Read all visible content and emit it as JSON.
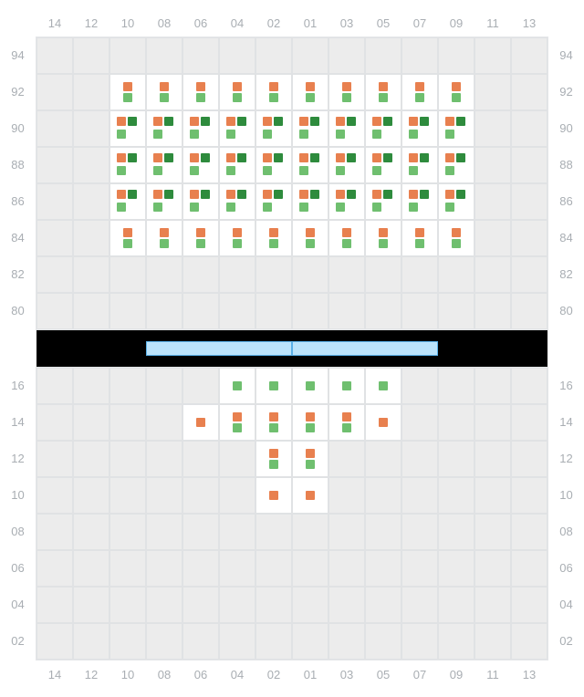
{
  "colors": {
    "orange": "#e8804f",
    "green": "#6fbf6f",
    "darkgreen": "#2e8b3d",
    "axis_text": "#a9aeb3",
    "grid_bg": "#ececec",
    "cell_border": "#e0e2e4",
    "occupied_bg": "#ffffff",
    "divider_bg": "#000000",
    "bar_bg": "#bbe3fb",
    "bar_border": "#5ab0e8"
  },
  "x_axis": [
    "14",
    "12",
    "10",
    "08",
    "06",
    "04",
    "02",
    "01",
    "03",
    "05",
    "07",
    "09",
    "11",
    "13"
  ],
  "top_panel": {
    "y_axis": [
      "94",
      "92",
      "90",
      "88",
      "86",
      "84",
      "82",
      "80"
    ],
    "cells": {
      "92": {
        "10": [
          "orange",
          "green"
        ],
        "08": [
          "orange",
          "green"
        ],
        "06": [
          "orange",
          "green"
        ],
        "04": [
          "orange",
          "green"
        ],
        "02": [
          "orange",
          "green"
        ],
        "01": [
          "orange",
          "green"
        ],
        "03": [
          "orange",
          "green"
        ],
        "05": [
          "orange",
          "green"
        ],
        "07": [
          "orange",
          "green"
        ],
        "09": [
          "orange",
          "green"
        ]
      },
      "90": {
        "10": [
          "orange",
          "darkgreen",
          "green"
        ],
        "08": [
          "orange",
          "darkgreen",
          "green"
        ],
        "06": [
          "orange",
          "darkgreen",
          "green"
        ],
        "04": [
          "orange",
          "darkgreen",
          "green"
        ],
        "02": [
          "orange",
          "darkgreen",
          "green"
        ],
        "01": [
          "orange",
          "darkgreen",
          "green"
        ],
        "03": [
          "orange",
          "darkgreen",
          "green"
        ],
        "05": [
          "orange",
          "darkgreen",
          "green"
        ],
        "07": [
          "orange",
          "darkgreen",
          "green"
        ],
        "09": [
          "orange",
          "darkgreen",
          "green"
        ]
      },
      "88": {
        "10": [
          "orange",
          "darkgreen",
          "green"
        ],
        "08": [
          "orange",
          "darkgreen",
          "green"
        ],
        "06": [
          "orange",
          "darkgreen",
          "green"
        ],
        "04": [
          "orange",
          "darkgreen",
          "green"
        ],
        "02": [
          "orange",
          "darkgreen",
          "green"
        ],
        "01": [
          "orange",
          "darkgreen",
          "green"
        ],
        "03": [
          "orange",
          "darkgreen",
          "green"
        ],
        "05": [
          "orange",
          "darkgreen",
          "green"
        ],
        "07": [
          "orange",
          "darkgreen",
          "green"
        ],
        "09": [
          "orange",
          "darkgreen",
          "green"
        ]
      },
      "86": {
        "10": [
          "orange",
          "darkgreen",
          "green"
        ],
        "08": [
          "orange",
          "darkgreen",
          "green"
        ],
        "06": [
          "orange",
          "darkgreen",
          "green"
        ],
        "04": [
          "orange",
          "darkgreen",
          "green"
        ],
        "02": [
          "orange",
          "darkgreen",
          "green"
        ],
        "01": [
          "orange",
          "darkgreen",
          "green"
        ],
        "03": [
          "orange",
          "darkgreen",
          "green"
        ],
        "05": [
          "orange",
          "darkgreen",
          "green"
        ],
        "07": [
          "orange",
          "darkgreen",
          "green"
        ],
        "09": [
          "orange",
          "darkgreen",
          "green"
        ]
      },
      "84": {
        "10": [
          "orange",
          "green"
        ],
        "08": [
          "orange",
          "green"
        ],
        "06": [
          "orange",
          "green"
        ],
        "04": [
          "orange",
          "green"
        ],
        "02": [
          "orange",
          "green"
        ],
        "01": [
          "orange",
          "green"
        ],
        "03": [
          "orange",
          "green"
        ],
        "05": [
          "orange",
          "green"
        ],
        "07": [
          "orange",
          "green"
        ],
        "09": [
          "orange",
          "green"
        ]
      }
    }
  },
  "divider": {
    "bar_segments": 2,
    "bar_total_width_cells": 8
  },
  "bottom_panel": {
    "y_axis": [
      "16",
      "14",
      "12",
      "10",
      "08",
      "06",
      "04",
      "02"
    ],
    "cells": {
      "16": {
        "04": [
          "green"
        ],
        "02": [
          "green"
        ],
        "01": [
          "green"
        ],
        "03": [
          "green"
        ],
        "05": [
          "green"
        ]
      },
      "14": {
        "06": [
          "orange"
        ],
        "04": [
          "orange",
          "green"
        ],
        "02": [
          "orange",
          "green"
        ],
        "01": [
          "orange",
          "green"
        ],
        "03": [
          "orange",
          "green"
        ],
        "05": [
          "orange"
        ]
      },
      "12": {
        "02": [
          "orange",
          "green"
        ],
        "01": [
          "orange",
          "green"
        ]
      },
      "10": {
        "02": [
          "orange"
        ],
        "01": [
          "orange"
        ]
      }
    }
  }
}
